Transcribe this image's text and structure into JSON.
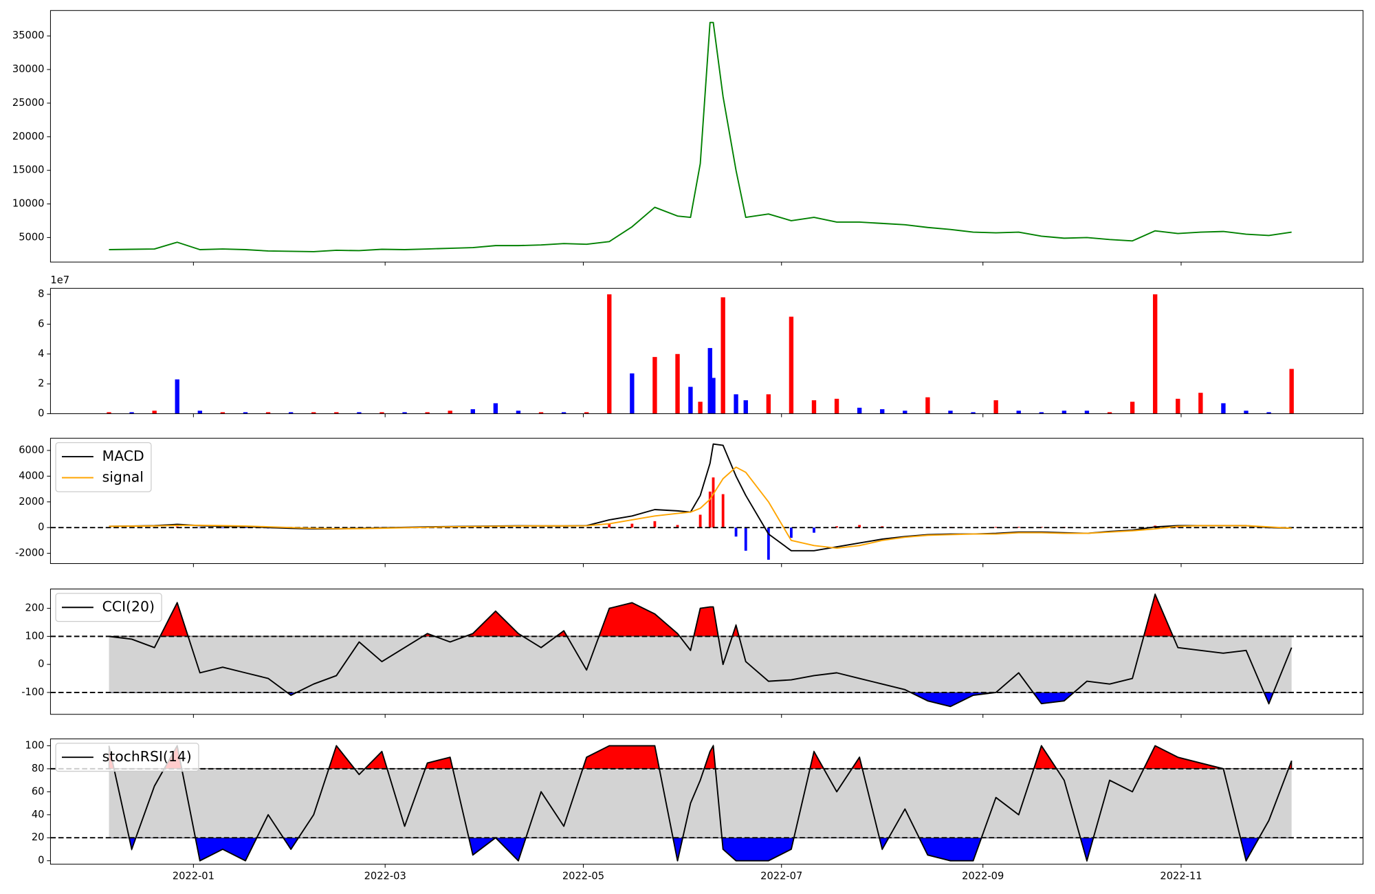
{
  "chart_data": {
    "type": "panels",
    "x": [
      "2021-12-06",
      "2021-12-13",
      "2021-12-20",
      "2021-12-27",
      "2022-01-03",
      "2022-01-10",
      "2022-01-17",
      "2022-01-24",
      "2022-01-31",
      "2022-02-07",
      "2022-02-14",
      "2022-02-21",
      "2022-02-28",
      "2022-03-07",
      "2022-03-14",
      "2022-03-21",
      "2022-03-28",
      "2022-04-04",
      "2022-04-11",
      "2022-04-18",
      "2022-04-25",
      "2022-05-02",
      "2022-05-09",
      "2022-05-16",
      "2022-05-23",
      "2022-05-30",
      "2022-06-03",
      "2022-06-06",
      "2022-06-09",
      "2022-06-10",
      "2022-06-13",
      "2022-06-17",
      "2022-06-20",
      "2022-06-27",
      "2022-07-04",
      "2022-07-11",
      "2022-07-18",
      "2022-07-25",
      "2022-08-01",
      "2022-08-08",
      "2022-08-15",
      "2022-08-22",
      "2022-08-29",
      "2022-09-05",
      "2022-09-12",
      "2022-09-19",
      "2022-09-26",
      "2022-10-03",
      "2022-10-10",
      "2022-10-17",
      "2022-10-24",
      "2022-10-31",
      "2022-11-07",
      "2022-11-14",
      "2022-11-21",
      "2022-11-28",
      "2022-12-05"
    ],
    "xlim": [
      "2021-11-18",
      "2022-12-27"
    ],
    "xticks": [
      {
        "value": "2022-01-01",
        "label": "2022-01"
      },
      {
        "value": "2022-03-01",
        "label": "2022-03"
      },
      {
        "value": "2022-05-01",
        "label": "2022-05"
      },
      {
        "value": "2022-07-01",
        "label": "2022-07"
      },
      {
        "value": "2022-09-01",
        "label": "2022-09"
      },
      {
        "value": "2022-11-01",
        "label": "2022-11"
      }
    ],
    "panels": [
      {
        "type": "line",
        "series": [
          {
            "color": "#008000",
            "values": [
              3200,
              3250,
              3300,
              4300,
              3200,
              3300,
              3200,
              3000,
              2950,
              2900,
              3100,
              3050,
              3250,
              3200,
              3300,
              3400,
              3500,
              3800,
              3800,
              3900,
              4100,
              4000,
              4400,
              6600,
              9500,
              8200,
              8000,
              16000,
              37000,
              37000,
              26000,
              15000,
              8000,
              8500,
              7500,
              8000,
              7300,
              7300,
              7100,
              6900,
              6500,
              6200,
              5800,
              5700,
              5800,
              5200,
              4900,
              5000,
              4700,
              4500,
              6000,
              5600,
              5800,
              5900,
              5500,
              5300,
              5800
            ]
          }
        ],
        "ylim": [
          1350,
          38780
        ],
        "yticks": [
          5000,
          10000,
          15000,
          20000,
          25000,
          30000,
          35000
        ]
      },
      {
        "type": "bar",
        "values": [
          1000000,
          1000000,
          2000000,
          23000000,
          2000000,
          1000000,
          1000000,
          1000000,
          1000000,
          1000000,
          1000000,
          1000000,
          1000000,
          1000000,
          1000000,
          2000000,
          3000000,
          7000000,
          2000000,
          1000000,
          1000000,
          1000000,
          80000000,
          27000000,
          38000000,
          40000000,
          18000000,
          8000000,
          44000000,
          24000000,
          78000000,
          13000000,
          9000000,
          13000000,
          65000000,
          9000000,
          10000000,
          4000000,
          3000000,
          2000000,
          11000000,
          2000000,
          1000000,
          9000000,
          2000000,
          1000000,
          2000000,
          2000000,
          1000000,
          8000000,
          80000000,
          10000000,
          14000000,
          7000000,
          2000000,
          1000000,
          30000000
        ],
        "colors": [
          "red",
          "blue",
          "red",
          "blue",
          "blue",
          "red",
          "blue",
          "red",
          "blue",
          "red",
          "red",
          "blue",
          "red",
          "blue",
          "red",
          "red",
          "blue",
          "blue",
          "blue",
          "red",
          "blue",
          "red",
          "red",
          "blue",
          "red",
          "red",
          "blue",
          "red",
          "blue",
          "blue",
          "red",
          "blue",
          "blue",
          "red",
          "red",
          "red",
          "red",
          "blue",
          "blue",
          "blue",
          "red",
          "blue",
          "blue",
          "red",
          "blue",
          "blue",
          "blue",
          "blue",
          "red",
          "red",
          "red",
          "red",
          "red",
          "blue",
          "blue",
          "blue",
          "red"
        ],
        "ylim": [
          0,
          84000000
        ],
        "yticks": [
          0,
          {
            "value": 20000000,
            "label": "2"
          },
          {
            "value": 40000000,
            "label": "4"
          },
          {
            "value": 60000000,
            "label": "6"
          },
          {
            "value": 80000000,
            "label": "8"
          }
        ],
        "y_offset_label": "1e7"
      },
      {
        "type": "macd",
        "series": [
          {
            "name": "MACD",
            "color": "black",
            "values": [
              100,
              120,
              150,
              250,
              150,
              100,
              80,
              0,
              -60,
              -100,
              -100,
              -60,
              -20,
              20,
              50,
              80,
              100,
              120,
              140,
              130,
              130,
              150,
              600,
              900,
              1400,
              1300,
              1200,
              2500,
              5000,
              6500,
              6400,
              4000,
              2500,
              -500,
              -1800,
              -1800,
              -1500,
              -1200,
              -900,
              -700,
              -550,
              -500,
              -500,
              -450,
              -350,
              -350,
              -400,
              -450,
              -300,
              -200,
              50,
              150,
              150,
              150,
              150,
              0,
              -50
            ]
          },
          {
            "name": "signal",
            "color": "orange",
            "values": [
              100,
              110,
              130,
              170,
              180,
              150,
              120,
              60,
              0,
              -60,
              -90,
              -80,
              -50,
              -10,
              20,
              60,
              80,
              100,
              120,
              130,
              130,
              140,
              300,
              600,
              900,
              1100,
              1200,
              1500,
              2200,
              2600,
              3800,
              4700,
              4300,
              2000,
              -1000,
              -1400,
              -1600,
              -1400,
              -1000,
              -750,
              -600,
              -550,
              -500,
              -500,
              -400,
              -400,
              -450,
              -450,
              -350,
              -250,
              -100,
              100,
              150,
              150,
              150,
              50,
              -50
            ]
          }
        ],
        "histogram": {
          "values": [
            0,
            10,
            20,
            80,
            -30,
            -50,
            -40,
            -60,
            -60,
            -40,
            -10,
            20,
            30,
            30,
            30,
            20,
            20,
            20,
            20,
            0,
            0,
            10,
            300,
            300,
            500,
            200,
            0,
            1000,
            2800,
            3900,
            2600,
            -700,
            -1800,
            -2500,
            -800,
            -400,
            100,
            200,
            100,
            50,
            50,
            50,
            0,
            50,
            50,
            50,
            50,
            0,
            50,
            50,
            150,
            50,
            0,
            0,
            0,
            -50,
            0
          ],
          "colors": {
            "positive": "red",
            "negative": "blue"
          }
        },
        "hlines": [
          0
        ],
        "ylim": [
          -2800,
          6950
        ],
        "yticks": [
          -2000,
          0,
          2000,
          4000,
          6000
        ],
        "legend": "upper left"
      },
      {
        "type": "oscillator",
        "series": [
          {
            "name": "CCI(20)",
            "color": "black",
            "values": [
              100,
              90,
              60,
              220,
              -30,
              -10,
              -30,
              -50,
              -110,
              -70,
              -40,
              80,
              10,
              60,
              110,
              80,
              110,
              190,
              110,
              60,
              120,
              -20,
              200,
              220,
              180,
              110,
              50,
              200,
              205,
              205,
              0,
              140,
              10,
              -60,
              -55,
              -40,
              -30,
              -50,
              -70,
              -90,
              -130,
              -150,
              -110,
              -100,
              -30,
              -140,
              -130,
              -60,
              -70,
              -50,
              250,
              60,
              50,
              40,
              50,
              -140,
              60
            ]
          }
        ],
        "hlines": [
          -100,
          100
        ],
        "band_color": "lightgray",
        "upper_fill": "red",
        "lower_fill": "blue",
        "ylim": [
          -178,
          269
        ],
        "yticks": [
          -100,
          0,
          100,
          200
        ],
        "legend": "upper left"
      },
      {
        "type": "oscillator",
        "series": [
          {
            "name": "stochRSI(14)",
            "color": "black",
            "values": [
              100,
              10,
              65,
              100,
              0,
              10,
              0,
              40,
              10,
              40,
              100,
              75,
              95,
              30,
              85,
              90,
              5,
              20,
              0,
              60,
              30,
              90,
              100,
              100,
              100,
              0,
              50,
              70,
              95,
              100,
              10,
              0,
              0,
              0,
              10,
              95,
              60,
              90,
              10,
              45,
              5,
              0,
              0,
              55,
              40,
              100,
              70,
              0,
              70,
              60,
              100,
              90,
              85,
              80,
              0,
              35,
              87
            ]
          }
        ],
        "hlines": [
          20,
          80
        ],
        "band_color": "lightgray",
        "upper_fill": "red",
        "lower_fill": "blue",
        "ylim": [
          -3,
          106
        ],
        "yticks": [
          0,
          20,
          40,
          60,
          80,
          100
        ],
        "legend": "upper left"
      }
    ]
  }
}
